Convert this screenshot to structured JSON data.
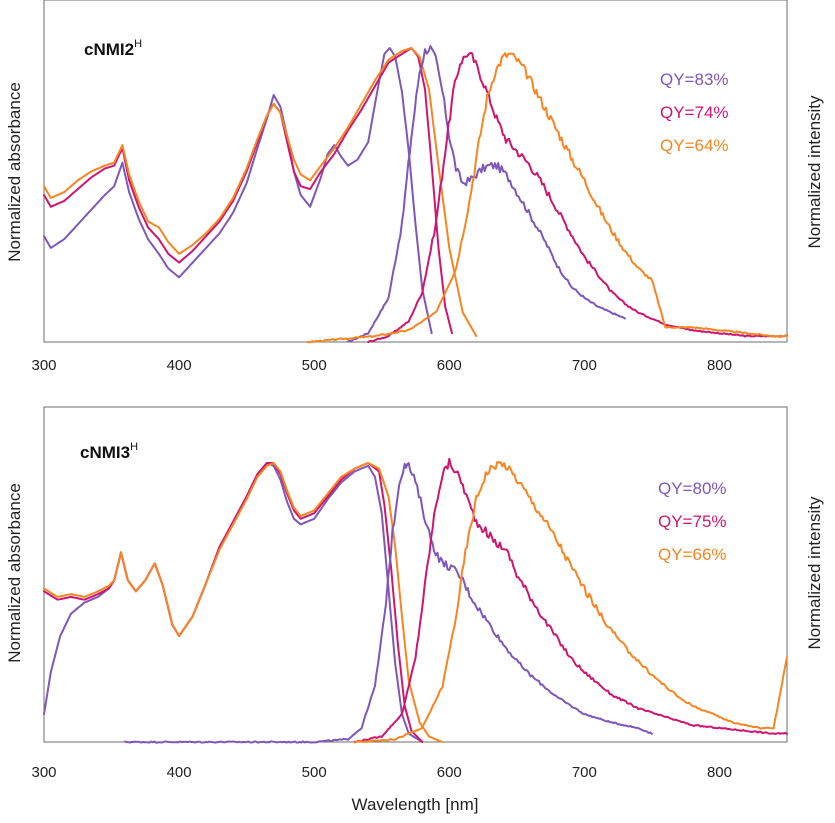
{
  "chart_data": [
    {
      "type": "line",
      "title": "cNMI2",
      "title_superscript": "H",
      "xlabel": "Wavelength [nm]",
      "ylabel_left": "Normalized absorbance",
      "ylabel_right": "Normalized intensity",
      "xlim": [
        300,
        850
      ],
      "ylim": [
        0,
        1
      ],
      "x_ticks": [
        "300",
        "400",
        "500",
        "600",
        "700",
        "800"
      ],
      "grid": false,
      "legend_placement": "top-right",
      "series": [
        {
          "name": "absorbance (purple)",
          "color": "#7f57b8",
          "x": [
            300,
            305,
            315,
            325,
            335,
            345,
            352,
            358,
            363,
            370,
            377,
            385,
            392,
            400,
            410,
            420,
            430,
            440,
            450,
            458,
            465,
            470,
            475,
            480,
            485,
            490,
            497,
            505,
            510,
            515,
            520,
            525,
            532,
            540,
            547,
            552,
            556,
            560,
            565,
            570,
            575,
            580,
            587
          ],
          "y": [
            0.36,
            0.32,
            0.35,
            0.4,
            0.45,
            0.5,
            0.53,
            0.61,
            0.51,
            0.42,
            0.35,
            0.3,
            0.25,
            0.22,
            0.27,
            0.32,
            0.37,
            0.44,
            0.54,
            0.66,
            0.76,
            0.84,
            0.8,
            0.7,
            0.58,
            0.5,
            0.46,
            0.56,
            0.64,
            0.67,
            0.63,
            0.6,
            0.62,
            0.68,
            0.86,
            0.98,
            1.0,
            0.97,
            0.85,
            0.65,
            0.4,
            0.18,
            0.03
          ]
        },
        {
          "name": "absorbance (magenta)",
          "color": "#cc1670",
          "x": [
            300,
            305,
            315,
            325,
            335,
            345,
            352,
            358,
            363,
            370,
            377,
            385,
            392,
            400,
            410,
            420,
            430,
            440,
            450,
            458,
            465,
            470,
            475,
            480,
            485,
            490,
            497,
            505,
            515,
            525,
            535,
            545,
            555,
            565,
            572,
            577,
            582,
            587,
            592,
            597,
            602
          ],
          "y": [
            0.5,
            0.46,
            0.48,
            0.52,
            0.56,
            0.59,
            0.6,
            0.66,
            0.55,
            0.46,
            0.39,
            0.35,
            0.3,
            0.27,
            0.31,
            0.36,
            0.41,
            0.48,
            0.58,
            0.68,
            0.77,
            0.81,
            0.78,
            0.68,
            0.58,
            0.53,
            0.52,
            0.58,
            0.64,
            0.72,
            0.79,
            0.87,
            0.95,
            0.98,
            1.0,
            0.97,
            0.86,
            0.6,
            0.32,
            0.12,
            0.03
          ]
        },
        {
          "name": "absorbance (orange)",
          "color": "#f68522",
          "x": [
            300,
            305,
            315,
            325,
            335,
            345,
            352,
            358,
            363,
            370,
            377,
            385,
            392,
            400,
            410,
            420,
            430,
            440,
            450,
            458,
            465,
            470,
            475,
            480,
            485,
            490,
            497,
            505,
            515,
            525,
            535,
            545,
            555,
            565,
            572,
            578,
            585,
            592,
            600,
            610,
            620
          ],
          "y": [
            0.53,
            0.49,
            0.51,
            0.55,
            0.58,
            0.6,
            0.61,
            0.67,
            0.57,
            0.48,
            0.41,
            0.39,
            0.34,
            0.3,
            0.33,
            0.37,
            0.42,
            0.49,
            0.59,
            0.69,
            0.77,
            0.81,
            0.78,
            0.7,
            0.62,
            0.57,
            0.55,
            0.6,
            0.66,
            0.73,
            0.81,
            0.89,
            0.96,
            0.99,
            1.0,
            0.97,
            0.86,
            0.6,
            0.32,
            0.1,
            0.02
          ]
        },
        {
          "name": "emission (purple)",
          "color": "#7f57b8",
          "x": [
            525,
            540,
            555,
            565,
            572,
            578,
            582,
            586,
            590,
            595,
            600,
            605,
            610,
            615,
            620,
            625,
            630,
            635,
            640,
            645,
            650,
            660,
            670,
            680,
            690,
            700,
            710,
            720,
            730
          ],
          "y": [
            0.0,
            0.03,
            0.15,
            0.4,
            0.7,
            0.92,
            0.99,
            1.0,
            0.96,
            0.85,
            0.7,
            0.59,
            0.54,
            0.55,
            0.57,
            0.59,
            0.6,
            0.6,
            0.58,
            0.55,
            0.51,
            0.43,
            0.35,
            0.26,
            0.19,
            0.15,
            0.12,
            0.1,
            0.08
          ]
        },
        {
          "name": "emission (magenta)",
          "color": "#cc1670",
          "x": [
            540,
            555,
            570,
            580,
            590,
            597,
            603,
            608,
            613,
            617,
            622,
            628,
            635,
            642,
            650,
            660,
            670,
            680,
            690,
            700,
            710,
            720,
            730,
            740,
            750,
            760,
            780,
            800,
            820,
            840,
            850
          ],
          "y": [
            0.0,
            0.02,
            0.07,
            0.17,
            0.4,
            0.65,
            0.85,
            0.95,
            0.98,
            0.97,
            0.92,
            0.85,
            0.76,
            0.69,
            0.65,
            0.6,
            0.53,
            0.45,
            0.37,
            0.29,
            0.23,
            0.17,
            0.13,
            0.1,
            0.08,
            0.06,
            0.04,
            0.03,
            0.02,
            0.02,
            0.02
          ]
        },
        {
          "name": "emission (orange)",
          "color": "#f68522",
          "x": [
            495,
            520,
            545,
            570,
            590,
            605,
            615,
            622,
            628,
            634,
            640,
            645,
            650,
            655,
            660,
            668,
            675,
            682,
            690,
            700,
            710,
            720,
            730,
            740,
            750,
            760,
            780,
            800,
            820,
            840,
            850
          ],
          "y": [
            0.0,
            0.01,
            0.02,
            0.04,
            0.1,
            0.25,
            0.48,
            0.68,
            0.83,
            0.92,
            0.97,
            0.98,
            0.96,
            0.93,
            0.89,
            0.82,
            0.76,
            0.7,
            0.63,
            0.55,
            0.46,
            0.38,
            0.31,
            0.25,
            0.21,
            0.05,
            0.05,
            0.04,
            0.03,
            0.02,
            0.02
          ]
        }
      ],
      "annotations": [
        "QY=83%",
        "QY=74%",
        "QY=64%"
      ],
      "annotation_colors": [
        "#7f57b8",
        "#cc1670",
        "#f68522"
      ]
    },
    {
      "type": "line",
      "title": "cNMI3",
      "title_superscript": "H",
      "xlabel": "Wavelength [nm]",
      "ylabel_left": "Normalized absorbance",
      "ylabel_right": "Normalized intensity",
      "xlim": [
        300,
        850
      ],
      "ylim": [
        0,
        1
      ],
      "x_ticks": [
        "300",
        "400",
        "500",
        "600",
        "700",
        "800"
      ],
      "grid": false,
      "legend_placement": "top-right",
      "series": [
        {
          "name": "absorbance (purple)",
          "color": "#7f57b8",
          "x": [
            300,
            305,
            312,
            320,
            330,
            340,
            348,
            352,
            357,
            362,
            368,
            375,
            382,
            388,
            395,
            400,
            410,
            420,
            430,
            440,
            450,
            458,
            465,
            470,
            475,
            480,
            485,
            490,
            500,
            510,
            520,
            530,
            540,
            545,
            550,
            555,
            560,
            565,
            570,
            580
          ],
          "y": [
            0.1,
            0.25,
            0.38,
            0.46,
            0.5,
            0.52,
            0.55,
            0.58,
            0.68,
            0.58,
            0.54,
            0.58,
            0.64,
            0.56,
            0.42,
            0.38,
            0.45,
            0.57,
            0.7,
            0.78,
            0.88,
            0.96,
            1.0,
            0.99,
            0.94,
            0.86,
            0.8,
            0.78,
            0.8,
            0.87,
            0.93,
            0.97,
            0.99,
            0.95,
            0.82,
            0.55,
            0.28,
            0.1,
            0.03,
            0.0
          ]
        },
        {
          "name": "absorbance (magenta)",
          "color": "#cc1670",
          "x": [
            300,
            310,
            320,
            330,
            340,
            348,
            352,
            357,
            362,
            368,
            375,
            382,
            388,
            395,
            400,
            410,
            420,
            430,
            440,
            450,
            458,
            465,
            470,
            475,
            480,
            485,
            490,
            500,
            510,
            520,
            530,
            540,
            548,
            552,
            557,
            562,
            567,
            572,
            580
          ],
          "y": [
            0.54,
            0.51,
            0.52,
            0.51,
            0.53,
            0.55,
            0.58,
            0.68,
            0.58,
            0.54,
            0.58,
            0.64,
            0.56,
            0.42,
            0.38,
            0.45,
            0.57,
            0.7,
            0.79,
            0.88,
            0.96,
            1.0,
            1.0,
            0.96,
            0.89,
            0.83,
            0.8,
            0.82,
            0.88,
            0.94,
            0.98,
            1.0,
            0.97,
            0.85,
            0.62,
            0.35,
            0.13,
            0.04,
            0.0
          ]
        },
        {
          "name": "absorbance (orange)",
          "color": "#f68522",
          "x": [
            300,
            310,
            320,
            330,
            340,
            348,
            352,
            357,
            362,
            368,
            375,
            382,
            388,
            395,
            400,
            410,
            420,
            430,
            440,
            450,
            458,
            465,
            470,
            475,
            480,
            485,
            490,
            500,
            510,
            520,
            530,
            540,
            548,
            555,
            560,
            565,
            570,
            578,
            585,
            595
          ],
          "y": [
            0.55,
            0.52,
            0.53,
            0.52,
            0.54,
            0.56,
            0.58,
            0.68,
            0.58,
            0.54,
            0.58,
            0.64,
            0.56,
            0.42,
            0.38,
            0.45,
            0.57,
            0.69,
            0.78,
            0.87,
            0.95,
            0.99,
            1.0,
            0.97,
            0.9,
            0.84,
            0.81,
            0.83,
            0.89,
            0.95,
            0.98,
            1.0,
            0.98,
            0.88,
            0.7,
            0.45,
            0.22,
            0.07,
            0.02,
            0.0
          ]
        },
        {
          "name": "emission (purple)",
          "color": "#7f57b8",
          "x": [
            360,
            450,
            500,
            525,
            535,
            545,
            552,
            558,
            563,
            567,
            570,
            575,
            580,
            585,
            590,
            595,
            600,
            605,
            610,
            615,
            620,
            630,
            640,
            650,
            660,
            670,
            680,
            690,
            700,
            720,
            740,
            750
          ],
          "y": [
            0.0,
            0.0,
            0.0,
            0.01,
            0.05,
            0.2,
            0.45,
            0.75,
            0.93,
            1.0,
            0.99,
            0.93,
            0.84,
            0.75,
            0.68,
            0.64,
            0.63,
            0.61,
            0.58,
            0.53,
            0.49,
            0.42,
            0.35,
            0.29,
            0.24,
            0.2,
            0.16,
            0.13,
            0.1,
            0.07,
            0.05,
            0.03
          ]
        },
        {
          "name": "emission (magenta)",
          "color": "#cc1670",
          "x": [
            530,
            550,
            565,
            575,
            583,
            590,
            595,
            600,
            605,
            610,
            615,
            620,
            628,
            635,
            640,
            645,
            650,
            660,
            670,
            680,
            690,
            700,
            710,
            720,
            740,
            760,
            780,
            800,
            820,
            840,
            850
          ],
          "y": [
            0.0,
            0.02,
            0.1,
            0.3,
            0.6,
            0.85,
            0.96,
            1.0,
            0.97,
            0.92,
            0.85,
            0.79,
            0.75,
            0.71,
            0.7,
            0.66,
            0.6,
            0.52,
            0.44,
            0.37,
            0.3,
            0.25,
            0.21,
            0.17,
            0.12,
            0.09,
            0.06,
            0.05,
            0.04,
            0.03,
            0.03
          ]
        },
        {
          "name": "emission (orange)",
          "color": "#f68522",
          "x": [
            530,
            560,
            580,
            595,
            605,
            612,
            620,
            627,
            633,
            638,
            642,
            647,
            652,
            660,
            670,
            680,
            690,
            700,
            710,
            720,
            730,
            740,
            750,
            760,
            770,
            780,
            790,
            800,
            810,
            820,
            830,
            840,
            850
          ],
          "y": [
            0.0,
            0.01,
            0.05,
            0.2,
            0.45,
            0.68,
            0.87,
            0.96,
            0.99,
            1.0,
            0.99,
            0.96,
            0.93,
            0.87,
            0.8,
            0.72,
            0.63,
            0.55,
            0.47,
            0.4,
            0.34,
            0.29,
            0.24,
            0.2,
            0.16,
            0.13,
            0.11,
            0.09,
            0.07,
            0.06,
            0.05,
            0.05,
            0.3
          ]
        }
      ],
      "annotations": [
        "QY=80%",
        "QY=75%",
        "QY=66%"
      ],
      "annotation_colors": [
        "#7f57b8",
        "#cc1670",
        "#f68522"
      ]
    }
  ]
}
